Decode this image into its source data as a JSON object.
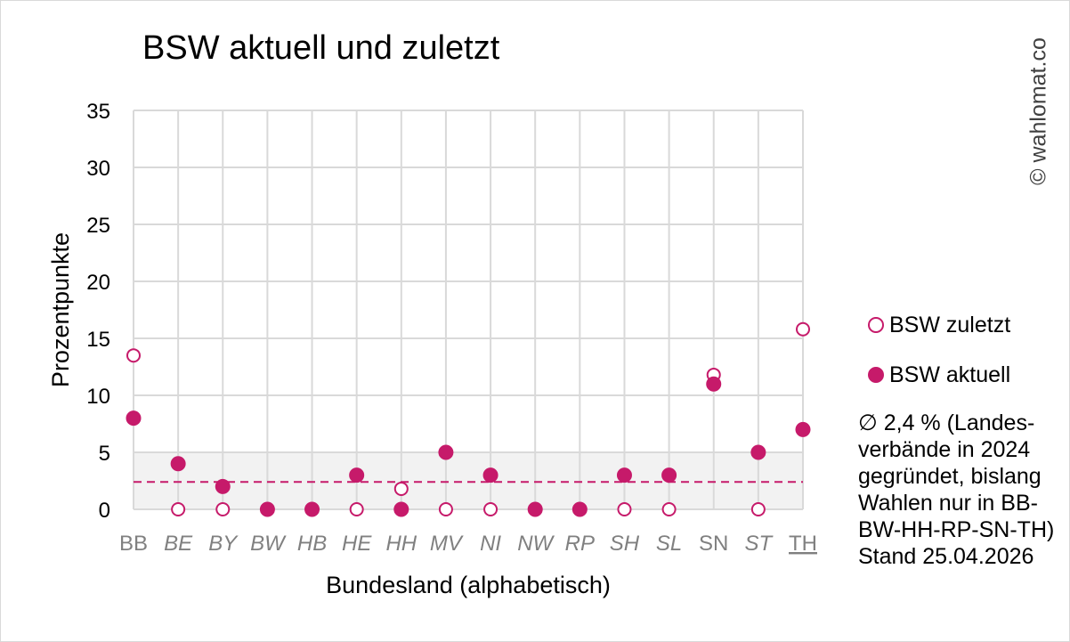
{
  "chart_data": {
    "type": "scatter",
    "title": "BSW aktuell und zuletzt",
    "xlabel": "Bundesland (alphabetisch)",
    "ylabel": "Prozentpunkte",
    "categories": [
      "BB",
      "BE",
      "BY",
      "BW",
      "HB",
      "HE",
      "HH",
      "MV",
      "NI",
      "NW",
      "RP",
      "SH",
      "SL",
      "SN",
      "ST",
      "TH"
    ],
    "category_style": {
      "italic": [
        "BE",
        "BY",
        "BW",
        "HB",
        "HE",
        "HH",
        "MV",
        "NI",
        "NW",
        "RP",
        "SH",
        "SL",
        "ST"
      ],
      "underline": [
        "TH"
      ]
    },
    "series": [
      {
        "name": "BSW zuletzt",
        "marker": "open-circle",
        "values": [
          13.5,
          0,
          0,
          0,
          0,
          0,
          1.8,
          0,
          0,
          0,
          0,
          0,
          0,
          11.8,
          0,
          15.8
        ]
      },
      {
        "name": "BSW aktuell",
        "marker": "filled-circle",
        "values": [
          8,
          4,
          2,
          0,
          0,
          3,
          0,
          5,
          3,
          0,
          0,
          3,
          3,
          11,
          5,
          7
        ]
      }
    ],
    "average_line": 2.4,
    "band": [
      0,
      5
    ],
    "ylim": [
      0,
      35
    ],
    "yticks": [
      0,
      5,
      10,
      15,
      20,
      25,
      30,
      35
    ],
    "grid": true,
    "legend_position": "right",
    "colors": {
      "accent": "#c61a6a",
      "grid": "#d9d9d9",
      "band": "#f2f2f2",
      "tick_x": "#808080"
    }
  },
  "copyright": "© wahlomat.co",
  "note_lines": [
    "∅ 2,4 % (Landes-",
    "verbände in 2024",
    "gegründet, bislang",
    "Wahlen nur in BB-",
    "BW-HH-RP-SN-TH)",
    "Stand 25.04.2026"
  ]
}
